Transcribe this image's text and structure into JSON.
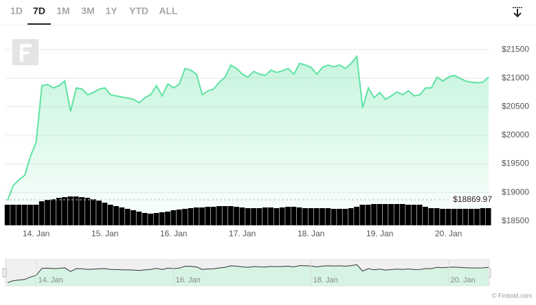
{
  "range_tabs": {
    "items": [
      "1D",
      "7D",
      "1M",
      "3M",
      "1Y",
      "YTD",
      "ALL"
    ],
    "selected": 1
  },
  "credits": "© Finbold.com",
  "chart_data": [
    {
      "type": "area",
      "categories": [
        null,
        null,
        null,
        null,
        null,
        "14. Jan",
        null,
        null,
        null,
        null,
        null,
        null,
        null,
        null,
        null,
        null,
        null,
        "15. Jan",
        null,
        null,
        null,
        null,
        null,
        null,
        null,
        null,
        null,
        null,
        null,
        "16. Jan",
        null,
        null,
        null,
        null,
        null,
        null,
        null,
        null,
        null,
        null,
        null,
        "17. Jan",
        null,
        null,
        null,
        null,
        null,
        null,
        null,
        null,
        null,
        null,
        null,
        "18. Jan",
        null,
        null,
        null,
        null,
        null,
        null,
        null,
        null,
        null,
        null,
        null,
        "19. Jan",
        null,
        null,
        null,
        null,
        null,
        null,
        null,
        null,
        null,
        null,
        null,
        "20. Jan",
        null,
        null,
        null,
        null,
        null,
        null,
        null
      ],
      "values": [
        18860,
        19120,
        19220,
        19300,
        19630,
        19880,
        20870,
        20890,
        20830,
        20870,
        20950,
        20420,
        20830,
        20810,
        20710,
        20750,
        20810,
        20830,
        20710,
        20690,
        20670,
        20650,
        20630,
        20570,
        20660,
        20710,
        20870,
        20690,
        20900,
        20830,
        20900,
        21170,
        21140,
        21070,
        20710,
        20780,
        20810,
        20930,
        21020,
        21230,
        21170,
        21070,
        21020,
        21120,
        21070,
        21050,
        21140,
        21100,
        21130,
        21170,
        21070,
        21260,
        21230,
        21190,
        21070,
        21190,
        21230,
        21200,
        21230,
        21170,
        21260,
        21380,
        20480,
        20830,
        20660,
        20750,
        20630,
        20690,
        20760,
        20710,
        20780,
        20690,
        20710,
        20830,
        20830,
        21020,
        20950,
        21020,
        21050,
        21000,
        20950,
        20930,
        20920,
        20930,
        21020
      ],
      "color": "#5ee3a1",
      "ylim": [
        18400,
        21900
      ],
      "yticks": [
        {
          "value": 18500,
          "label": "$18500"
        },
        {
          "value": 19000,
          "label": "$19000"
        },
        {
          "value": 19500,
          "label": "$19500"
        },
        {
          "value": 20000,
          "label": "$20000"
        },
        {
          "value": 20500,
          "label": "$20500"
        },
        {
          "value": 21000,
          "label": "$21000"
        },
        {
          "value": 21500,
          "label": "$21500"
        }
      ],
      "grid": true,
      "annotations": [
        {
          "value": 18869.97,
          "label": "$18869.97"
        }
      ]
    },
    {
      "type": "bar",
      "values": [
        30,
        30,
        30,
        30,
        30,
        30,
        35,
        37,
        38,
        40,
        41,
        42,
        42,
        41,
        40,
        38,
        36,
        33,
        30,
        28,
        26,
        24,
        22,
        20,
        18,
        17,
        18,
        19,
        20,
        22,
        23,
        24,
        25,
        26,
        26,
        27,
        27,
        28,
        28,
        28,
        27,
        26,
        25,
        25,
        25,
        26,
        26,
        25,
        26,
        27,
        27,
        26,
        25,
        25,
        25,
        25,
        25,
        24,
        24,
        24,
        25,
        27,
        30,
        30,
        31,
        31,
        31,
        31,
        31,
        31,
        30,
        30,
        30,
        27,
        25,
        25,
        24,
        24,
        24,
        24,
        24,
        24,
        24,
        25,
        25
      ],
      "color": "#000000",
      "ylim": [
        0,
        100
      ]
    },
    {
      "type": "navigator",
      "categories": [
        null,
        null,
        null,
        null,
        null,
        "14. Jan",
        null,
        null,
        null,
        null,
        null,
        null,
        null,
        null,
        null,
        null,
        null,
        null,
        null,
        null,
        null,
        null,
        null,
        null,
        null,
        null,
        null,
        null,
        null,
        "16. Jan",
        null,
        null,
        null,
        null,
        null,
        null,
        null,
        null,
        null,
        null,
        null,
        null,
        null,
        null,
        null,
        null,
        null,
        null,
        null,
        null,
        null,
        null,
        null,
        "18. Jan",
        null,
        null,
        null,
        null,
        null,
        null,
        null,
        null,
        null,
        null,
        null,
        null,
        null,
        null,
        null,
        null,
        null,
        null,
        null,
        null,
        null,
        null,
        null,
        "20. Jan",
        null,
        null,
        null,
        null,
        null,
        null,
        null
      ]
    }
  ]
}
